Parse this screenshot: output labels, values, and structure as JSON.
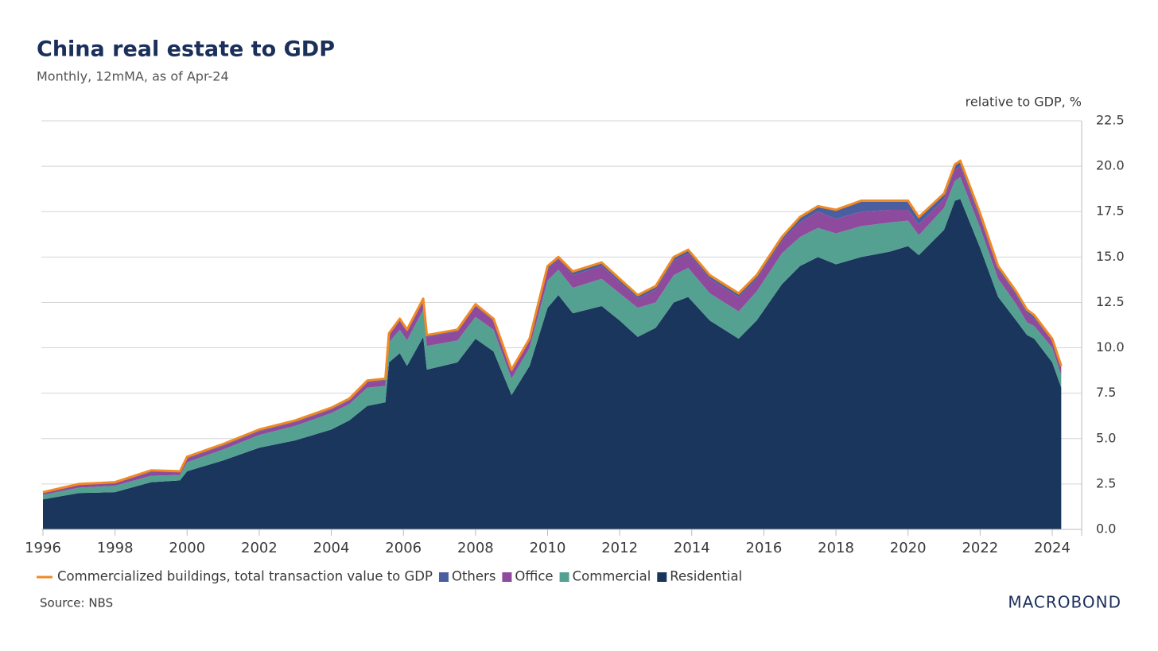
{
  "chart_data": {
    "type": "area",
    "title": "China real estate to GDP",
    "subtitle": "Monthly, 12mMA, as of Apr-24",
    "y_label": "relative to GDP, %",
    "source": "Source: NBS",
    "brand": "MACROBOND",
    "stacked": true,
    "grid": true,
    "legend": "bottom",
    "x": [
      1996.0,
      1997.0,
      1998.0,
      1999.0,
      1999.8,
      2000.0,
      2001.0,
      2002.0,
      2003.0,
      2004.0,
      2004.5,
      2005.0,
      2005.5,
      2005.6,
      2005.9,
      2006.1,
      2006.55,
      2006.65,
      2007.5,
      2008.0,
      2008.5,
      2009.0,
      2009.5,
      2010.0,
      2010.3,
      2010.7,
      2011.5,
      2012.0,
      2012.5,
      2013.0,
      2013.5,
      2013.9,
      2014.5,
      2015.3,
      2015.8,
      2016.5,
      2017.0,
      2017.5,
      2018.0,
      2018.7,
      2019.5,
      2020.0,
      2020.3,
      2021.0,
      2021.3,
      2021.45,
      2022.0,
      2022.5,
      2023.0,
      2023.3,
      2023.5,
      2024.0,
      2024.25
    ],
    "xlim": [
      1996,
      2024.82
    ],
    "xticks": [
      1996,
      1998,
      2000,
      2002,
      2004,
      2006,
      2008,
      2010,
      2012,
      2014,
      2016,
      2018,
      2020,
      2022,
      2024
    ],
    "ylim": [
      0,
      22.5
    ],
    "yticks": [
      {
        "value": 0,
        "label": "0.0"
      },
      2.5,
      {
        "value": 5,
        "label": "5.0"
      },
      7.5,
      {
        "value": 10,
        "label": "10.0"
      },
      12.5,
      {
        "value": 15,
        "label": "15.0"
      },
      17.5,
      {
        "value": 20,
        "label": "20.0"
      },
      22.5
    ],
    "series": [
      {
        "name": "Commercialized buildings, total transaction value to GDP",
        "type": "line",
        "color": "#f08a24",
        "values": [
          2.05,
          2.5,
          2.6,
          3.25,
          3.2,
          4.0,
          4.7,
          5.5,
          6.0,
          6.7,
          7.2,
          8.2,
          8.3,
          10.8,
          11.6,
          11.0,
          12.7,
          10.7,
          11.0,
          12.4,
          11.6,
          8.8,
          10.5,
          14.5,
          15.0,
          14.2,
          14.7,
          13.8,
          12.9,
          13.4,
          15.0,
          15.4,
          14.0,
          13.0,
          14.0,
          16.1,
          17.2,
          17.8,
          17.6,
          18.1,
          18.1,
          18.1,
          17.2,
          18.5,
          20.1,
          20.3,
          17.4,
          14.5,
          13.1,
          12.1,
          11.8,
          10.5,
          9.0
        ]
      },
      {
        "name": "Others",
        "color": "#4a5fa0",
        "values": [
          0.05,
          0.05,
          0.05,
          0.1,
          0.05,
          0.1,
          0.1,
          0.1,
          0.1,
          0.1,
          0.1,
          0.1,
          0.1,
          0.1,
          0.1,
          0.1,
          0.1,
          0.1,
          0.1,
          0.1,
          0.1,
          0.1,
          0.1,
          0.2,
          0.1,
          0.2,
          0.2,
          0.2,
          0.2,
          0.2,
          0.2,
          0.2,
          0.2,
          0.2,
          0.2,
          0.2,
          0.3,
          0.3,
          0.5,
          0.6,
          0.5,
          0.5,
          0.4,
          0.3,
          0.3,
          0.3,
          0.3,
          0.2,
          0.2,
          0.2,
          0.2,
          0.1,
          0.1
        ]
      },
      {
        "name": "Office",
        "color": "#8e4b9e",
        "values": [
          0.1,
          0.15,
          0.15,
          0.2,
          0.15,
          0.2,
          0.2,
          0.2,
          0.2,
          0.2,
          0.2,
          0.3,
          0.3,
          0.4,
          0.5,
          0.5,
          0.5,
          0.5,
          0.5,
          0.6,
          0.5,
          0.4,
          0.4,
          0.6,
          0.6,
          0.7,
          0.7,
          0.6,
          0.5,
          0.7,
          0.8,
          0.8,
          0.8,
          0.8,
          0.7,
          0.7,
          0.8,
          0.9,
          0.8,
          0.8,
          0.7,
          0.6,
          0.6,
          0.5,
          0.6,
          0.6,
          0.5,
          0.5,
          0.5,
          0.5,
          0.4,
          0.4,
          0.4
        ]
      },
      {
        "name": "Commercial",
        "color": "#55a191",
        "values": [
          0.25,
          0.3,
          0.35,
          0.35,
          0.3,
          0.5,
          0.6,
          0.7,
          0.8,
          0.9,
          0.9,
          1.0,
          0.9,
          1.1,
          1.3,
          1.4,
          1.5,
          1.3,
          1.2,
          1.2,
          1.2,
          0.9,
          1.0,
          1.5,
          1.4,
          1.4,
          1.5,
          1.5,
          1.6,
          1.4,
          1.5,
          1.6,
          1.5,
          1.5,
          1.6,
          1.7,
          1.6,
          1.6,
          1.7,
          1.7,
          1.6,
          1.4,
          1.1,
          1.2,
          1.1,
          1.2,
          1.1,
          1.0,
          0.9,
          0.7,
          0.7,
          0.8,
          0.7
        ]
      },
      {
        "name": "Residential",
        "color": "#1b365d",
        "values": [
          1.65,
          2.0,
          2.05,
          2.6,
          2.7,
          3.2,
          3.8,
          4.5,
          4.9,
          5.5,
          6.0,
          6.8,
          7.0,
          9.2,
          9.7,
          9.0,
          10.6,
          8.8,
          9.2,
          10.5,
          9.8,
          7.4,
          9.0,
          12.2,
          12.9,
          11.9,
          12.3,
          11.5,
          10.6,
          11.1,
          12.5,
          12.8,
          11.5,
          10.5,
          11.5,
          13.5,
          14.5,
          15.0,
          14.6,
          15.0,
          15.3,
          15.6,
          15.1,
          16.5,
          18.1,
          18.2,
          15.5,
          12.8,
          11.5,
          10.7,
          10.5,
          9.2,
          7.8
        ]
      }
    ]
  }
}
